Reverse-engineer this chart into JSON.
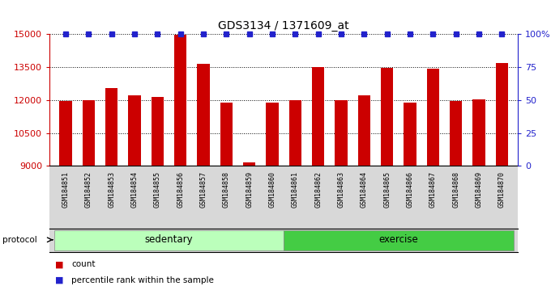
{
  "title": "GDS3134 / 1371609_at",
  "samples": [
    "GSM184851",
    "GSM184852",
    "GSM184853",
    "GSM184854",
    "GSM184855",
    "GSM184856",
    "GSM184857",
    "GSM184858",
    "GSM184859",
    "GSM184860",
    "GSM184861",
    "GSM184862",
    "GSM184863",
    "GSM184864",
    "GSM184865",
    "GSM184866",
    "GSM184867",
    "GSM184868",
    "GSM184869",
    "GSM184870"
  ],
  "counts": [
    11950,
    12000,
    12550,
    12200,
    12150,
    14980,
    13650,
    11870,
    9150,
    11870,
    12000,
    13500,
    12000,
    12220,
    13480,
    11900,
    13450,
    11950,
    12020,
    13680
  ],
  "percentile_ranks": [
    100,
    100,
    100,
    100,
    100,
    100,
    100,
    100,
    100,
    100,
    100,
    100,
    100,
    100,
    100,
    100,
    100,
    100,
    100,
    100
  ],
  "bar_color": "#CC0000",
  "percentile_color": "#2222CC",
  "ymin": 9000,
  "ymax": 15000,
  "yticks_left": [
    9000,
    10500,
    12000,
    13500,
    15000
  ],
  "right_ytick_vals": [
    0,
    25,
    50,
    75,
    100
  ],
  "sed_color_light": "#ccffcc",
  "sed_color": "#aaddaa",
  "ex_color": "#44cc44",
  "ex_color_dark": "#33bb33",
  "protocol_bg": "#dddddd",
  "legend_count_label": "count",
  "legend_percentile_label": "percentile rank within the sample"
}
